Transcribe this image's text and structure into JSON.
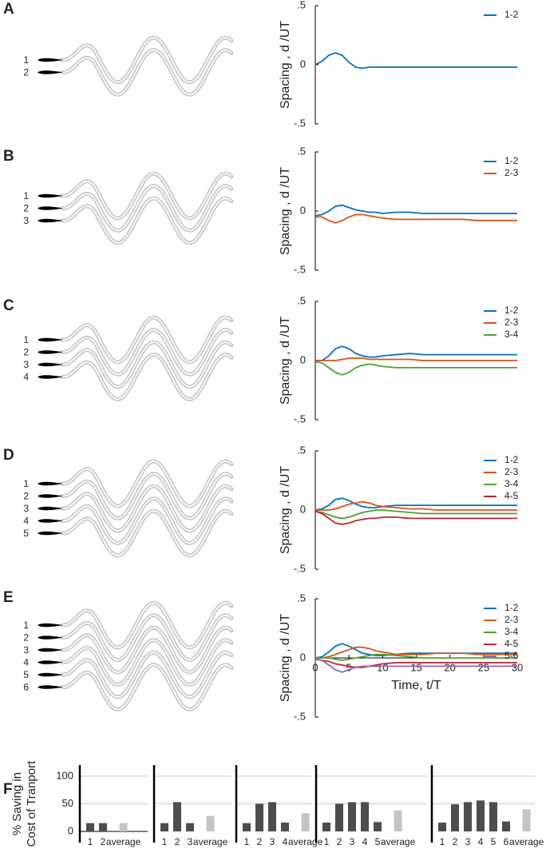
{
  "panel_labels": [
    "A",
    "B",
    "C",
    "D",
    "E",
    "F"
  ],
  "diagrams": [
    [
      "1",
      "2"
    ],
    [
      "1",
      "2",
      "3"
    ],
    [
      "1",
      "2",
      "3",
      "4"
    ],
    [
      "1",
      "2",
      "3",
      "4",
      "5"
    ],
    [
      "1",
      "2",
      "3",
      "4",
      "5",
      "6"
    ]
  ],
  "chart_data": [
    {
      "type": "line",
      "ylabel": "Spacing , d /UT",
      "xlim": [
        0,
        30
      ],
      "ylim": [
        -0.5,
        0.5
      ],
      "yticks": [
        {
          "value": 0.5,
          "label": ".5"
        },
        0,
        {
          "value": -0.5,
          "label": "-.5"
        }
      ],
      "x": [
        0,
        1,
        2,
        3,
        4,
        5,
        6,
        7,
        8,
        9,
        10,
        12,
        14,
        16,
        18,
        20,
        22,
        24,
        26,
        28,
        30
      ],
      "series": [
        {
          "name": "1-2",
          "color": "#0072bd",
          "values": [
            0.0,
            0.03,
            0.08,
            0.1,
            0.08,
            0.02,
            -0.02,
            -0.03,
            -0.02,
            -0.02,
            -0.02,
            -0.02,
            -0.02,
            -0.02,
            -0.02,
            -0.02,
            -0.02,
            -0.02,
            -0.02,
            -0.02,
            -0.02
          ]
        }
      ]
    },
    {
      "type": "line",
      "ylabel": "Spacing , d /UT",
      "xlim": [
        0,
        30
      ],
      "ylim": [
        -0.5,
        0.5
      ],
      "yticks": [
        {
          "value": 0.5,
          "label": ".5"
        },
        0,
        {
          "value": -0.5,
          "label": "-.5"
        }
      ],
      "x": [
        0,
        1,
        2,
        3,
        4,
        5,
        6,
        7,
        8,
        9,
        10,
        12,
        14,
        16,
        18,
        20,
        22,
        24,
        26,
        28,
        30
      ],
      "series": [
        {
          "name": "1-2",
          "color": "#0072bd",
          "values": [
            -0.04,
            -0.03,
            0.0,
            0.04,
            0.05,
            0.03,
            0.01,
            0.0,
            -0.01,
            -0.01,
            -0.02,
            -0.01,
            -0.01,
            -0.02,
            -0.02,
            -0.02,
            -0.02,
            -0.02,
            -0.02,
            -0.02,
            -0.02
          ]
        },
        {
          "name": "2-3",
          "color": "#d95319",
          "values": [
            -0.05,
            -0.05,
            -0.08,
            -0.1,
            -0.08,
            -0.05,
            -0.03,
            -0.03,
            -0.04,
            -0.05,
            -0.06,
            -0.07,
            -0.07,
            -0.07,
            -0.07,
            -0.07,
            -0.07,
            -0.08,
            -0.08,
            -0.08,
            -0.08
          ]
        }
      ]
    },
    {
      "type": "line",
      "ylabel": "Spacing , d /UT",
      "xlim": [
        0,
        30
      ],
      "ylim": [
        -0.5,
        0.5
      ],
      "yticks": [
        {
          "value": 0.5,
          "label": ".5"
        },
        0,
        {
          "value": -0.5,
          "label": "-.5"
        }
      ],
      "x": [
        0,
        1,
        2,
        3,
        4,
        5,
        6,
        7,
        8,
        9,
        10,
        12,
        14,
        16,
        18,
        20,
        22,
        24,
        26,
        28,
        30
      ],
      "series": [
        {
          "name": "1-2",
          "color": "#0072bd",
          "values": [
            0.0,
            0.0,
            0.04,
            0.1,
            0.12,
            0.1,
            0.06,
            0.04,
            0.03,
            0.03,
            0.04,
            0.05,
            0.06,
            0.05,
            0.05,
            0.05,
            0.05,
            0.05,
            0.05,
            0.05,
            0.05
          ]
        },
        {
          "name": "2-3",
          "color": "#d95319",
          "values": [
            0.0,
            0.0,
            0.0,
            0.0,
            0.01,
            0.02,
            0.02,
            0.02,
            0.01,
            0.01,
            0.01,
            0.01,
            0.01,
            0.0,
            0.0,
            0.0,
            0.0,
            0.0,
            0.0,
            0.0,
            0.0
          ]
        },
        {
          "name": "3-4",
          "color": "#4ca22e",
          "values": [
            -0.01,
            -0.02,
            -0.06,
            -0.1,
            -0.12,
            -0.1,
            -0.06,
            -0.04,
            -0.03,
            -0.04,
            -0.05,
            -0.06,
            -0.06,
            -0.06,
            -0.06,
            -0.06,
            -0.06,
            -0.06,
            -0.06,
            -0.06,
            -0.06
          ]
        }
      ]
    },
    {
      "type": "line",
      "ylabel": "Spacing , d /UT",
      "xlim": [
        0,
        30
      ],
      "ylim": [
        -0.5,
        0.5
      ],
      "yticks": [
        {
          "value": 0.5,
          "label": ".5"
        },
        0,
        {
          "value": -0.5,
          "label": "-.5"
        }
      ],
      "x": [
        0,
        1,
        2,
        3,
        4,
        5,
        6,
        7,
        8,
        9,
        10,
        12,
        14,
        16,
        18,
        20,
        22,
        24,
        26,
        28,
        30
      ],
      "series": [
        {
          "name": "1-2",
          "color": "#0072bd",
          "values": [
            0.0,
            0.01,
            0.04,
            0.09,
            0.1,
            0.08,
            0.05,
            0.03,
            0.02,
            0.02,
            0.03,
            0.04,
            0.04,
            0.04,
            0.04,
            0.04,
            0.04,
            0.04,
            0.04,
            0.04,
            0.04
          ]
        },
        {
          "name": "2-3",
          "color": "#d95319",
          "values": [
            0.0,
            0.0,
            0.0,
            0.01,
            0.03,
            0.05,
            0.06,
            0.07,
            0.06,
            0.04,
            0.03,
            0.02,
            0.01,
            0.01,
            0.0,
            0.0,
            0.0,
            0.0,
            0.0,
            0.0,
            0.0
          ]
        },
        {
          "name": "3-4",
          "color": "#4ca22e",
          "values": [
            -0.01,
            -0.02,
            -0.04,
            -0.06,
            -0.07,
            -0.06,
            -0.04,
            -0.02,
            -0.01,
            0.0,
            0.0,
            -0.01,
            -0.02,
            -0.03,
            -0.03,
            -0.03,
            -0.03,
            -0.03,
            -0.03,
            -0.03,
            -0.03
          ]
        },
        {
          "name": "4-5",
          "color": "#c1272d",
          "values": [
            -0.01,
            -0.03,
            -0.07,
            -0.11,
            -0.12,
            -0.11,
            -0.09,
            -0.08,
            -0.07,
            -0.07,
            -0.06,
            -0.06,
            -0.07,
            -0.07,
            -0.07,
            -0.07,
            -0.07,
            -0.07,
            -0.07,
            -0.07,
            -0.07
          ]
        }
      ]
    },
    {
      "type": "line",
      "ylabel": "Spacing , d /UT",
      "xlabel": "Time, t/T",
      "xlim": [
        0,
        30
      ],
      "ylim": [
        -0.5,
        0.5
      ],
      "yticks": [
        {
          "value": 0.5,
          "label": ".5"
        },
        0,
        {
          "value": -0.5,
          "label": "-.5"
        }
      ],
      "xticks": [
        0,
        5,
        10,
        15,
        20,
        25,
        30
      ],
      "x": [
        0,
        1,
        2,
        3,
        4,
        5,
        6,
        7,
        8,
        9,
        10,
        12,
        14,
        16,
        18,
        20,
        22,
        24,
        26,
        28,
        30
      ],
      "series": [
        {
          "name": "1-2",
          "color": "#0072bd",
          "values": [
            0.0,
            0.01,
            0.05,
            0.1,
            0.12,
            0.1,
            0.07,
            0.04,
            0.03,
            0.02,
            0.02,
            0.03,
            0.04,
            0.04,
            0.04,
            0.04,
            0.04,
            0.04,
            0.04,
            0.04,
            0.04
          ]
        },
        {
          "name": "2-3",
          "color": "#d95319",
          "values": [
            0.0,
            0.0,
            0.01,
            0.03,
            0.05,
            0.07,
            0.09,
            0.09,
            0.08,
            0.06,
            0.05,
            0.03,
            0.03,
            0.03,
            0.04,
            0.04,
            0.04,
            0.03,
            0.03,
            0.03,
            0.03
          ]
        },
        {
          "name": "3-4",
          "color": "#4ca22e",
          "values": [
            0.0,
            0.0,
            0.0,
            -0.01,
            -0.02,
            -0.01,
            0.0,
            0.01,
            0.02,
            0.03,
            0.03,
            0.02,
            0.01,
            0.0,
            0.0,
            0.0,
            0.0,
            0.0,
            0.0,
            0.0,
            0.0
          ]
        },
        {
          "name": "4-5",
          "color": "#c1272d",
          "values": [
            -0.01,
            -0.02,
            -0.03,
            -0.05,
            -0.06,
            -0.07,
            -0.08,
            -0.08,
            -0.07,
            -0.06,
            -0.05,
            -0.04,
            -0.04,
            -0.04,
            -0.04,
            -0.04,
            -0.04,
            -0.04,
            -0.04,
            -0.04,
            -0.04
          ]
        },
        {
          "name": "5-6",
          "color": "#9467bd",
          "values": [
            -0.01,
            -0.02,
            -0.06,
            -0.1,
            -0.12,
            -0.1,
            -0.08,
            -0.07,
            -0.07,
            -0.07,
            -0.07,
            -0.07,
            -0.07,
            -0.07,
            -0.07,
            -0.07,
            -0.07,
            -0.07,
            -0.07,
            -0.07,
            -0.07
          ]
        }
      ]
    },
    {
      "type": "bar",
      "ylabel": [
        "% Saving in",
        "Cost of Tranport"
      ],
      "ylim": [
        0,
        120
      ],
      "yticks": [
        0,
        50,
        100
      ],
      "categories": [
        "1",
        "2",
        "average"
      ],
      "values": [
        15,
        15,
        15
      ],
      "colors": [
        "#4d4d4d",
        "#4d4d4d",
        "#c4c4c4"
      ]
    },
    {
      "type": "bar",
      "ylim": [
        0,
        120
      ],
      "ygrid": [
        50,
        100
      ],
      "categories": [
        "1",
        "2",
        "3",
        "average"
      ],
      "values": [
        15,
        53,
        15,
        28
      ],
      "colors": [
        "#4d4d4d",
        "#4d4d4d",
        "#4d4d4d",
        "#c4c4c4"
      ]
    },
    {
      "type": "bar",
      "ylim": [
        0,
        120
      ],
      "ygrid": [
        50,
        100
      ],
      "categories": [
        "1",
        "2",
        "3",
        "4",
        "average"
      ],
      "values": [
        15,
        50,
        53,
        16,
        33
      ],
      "colors": [
        "#4d4d4d",
        "#4d4d4d",
        "#4d4d4d",
        "#4d4d4d",
        "#c4c4c4"
      ]
    },
    {
      "type": "bar",
      "ylim": [
        0,
        120
      ],
      "ygrid": [
        50,
        100
      ],
      "categories": [
        "1",
        "2",
        "3",
        "4",
        "5",
        "average"
      ],
      "values": [
        16,
        50,
        53,
        53,
        17,
        38
      ],
      "colors": [
        "#4d4d4d",
        "#4d4d4d",
        "#4d4d4d",
        "#4d4d4d",
        "#4d4d4d",
        "#c4c4c4"
      ]
    },
    {
      "type": "bar",
      "ylim": [
        0,
        120
      ],
      "ygrid": [
        50,
        100
      ],
      "categories": [
        "1",
        "2",
        "3",
        "4",
        "5",
        "6",
        "average"
      ],
      "values": [
        16,
        49,
        53,
        56,
        53,
        18,
        40
      ],
      "colors": [
        "#4d4d4d",
        "#4d4d4d",
        "#4d4d4d",
        "#4d4d4d",
        "#4d4d4d",
        "#4d4d4d",
        "#c4c4c4"
      ]
    }
  ]
}
